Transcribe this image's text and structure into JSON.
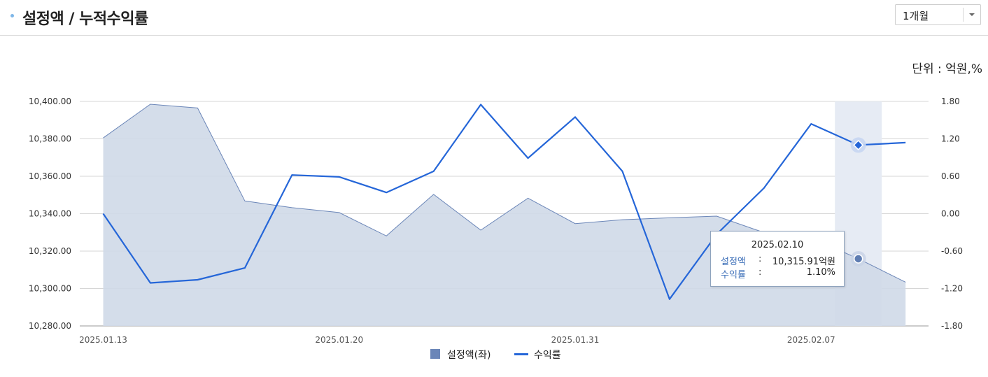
{
  "header": {
    "title": "설정액 / 누적수익률",
    "period_select": {
      "selected": "1개월"
    }
  },
  "unit_label": "단위 : 억원,%",
  "tooltip": {
    "date": "2025.02.10",
    "rows": [
      {
        "label": "설정액",
        "colon": ":",
        "value": "10,315.91억원"
      },
      {
        "label": "수익률",
        "colon": ":",
        "value": "1.10%"
      }
    ]
  },
  "legend": {
    "area": "설정액(좌)",
    "line": "수익률"
  },
  "colors": {
    "area_fill": "#cfd9e8",
    "area_stroke": "#6b86b8",
    "line": "#2566d8",
    "highlight": "#e6ebf4"
  },
  "chart_data": {
    "type": "area",
    "x_ticks": [
      "2025.01.13",
      "2025.01.20",
      "2025.01.31",
      "2025.02.07"
    ],
    "x_tick_index": [
      0,
      5,
      10,
      15
    ],
    "highlight_index": 16,
    "left_axis": {
      "ticks": [
        "10,400.00",
        "10,380.00",
        "10,360.00",
        "10,340.00",
        "10,320.00",
        "10,300.00",
        "10,280.00"
      ],
      "ylim": [
        10280,
        10400
      ]
    },
    "right_axis": {
      "ticks": [
        "1.80",
        "1.20",
        "0.60",
        "0.00",
        "-0.60",
        "-1.20",
        "-1.80"
      ],
      "ylim": [
        -1.8,
        1.8
      ]
    },
    "grid": true,
    "legend_position": "bottom-center",
    "series": [
      {
        "name": "설정액(좌)",
        "type": "area",
        "axis": "left",
        "values": [
          10380.5,
          10398.5,
          10396.5,
          10346.8,
          10343.2,
          10340.6,
          10328.1,
          10350.3,
          10331.2,
          10348.3,
          10334.7,
          10336.8,
          10337.8,
          10338.7,
          10329.9,
          10327.1,
          10315.91,
          10303.4
        ]
      },
      {
        "name": "수익률",
        "type": "line",
        "axis": "right",
        "values": [
          0.0,
          -1.11,
          -1.06,
          -0.87,
          0.62,
          0.59,
          0.34,
          0.68,
          1.75,
          0.89,
          1.55,
          0.68,
          -1.37,
          -0.33,
          0.41,
          1.44,
          1.1,
          1.14
        ]
      }
    ]
  }
}
